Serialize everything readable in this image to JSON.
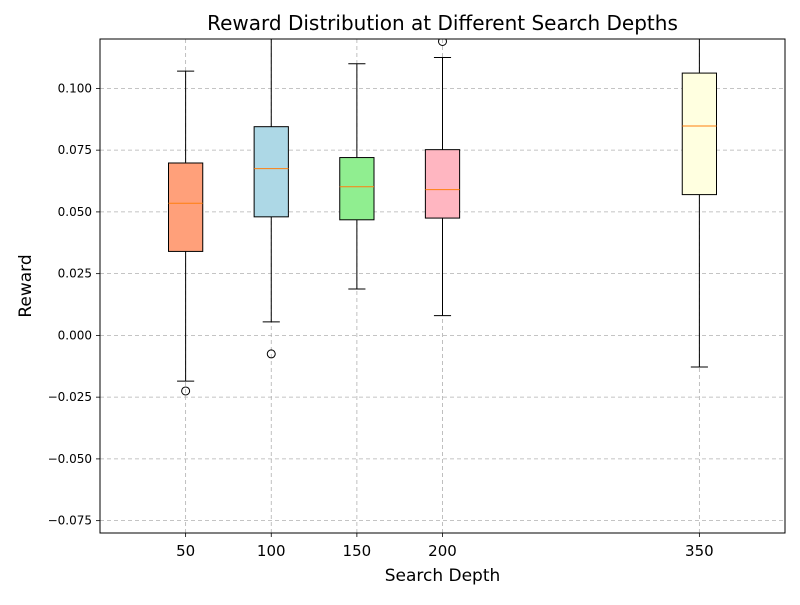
{
  "chart_data": {
    "type": "box",
    "title": "Reward Distribution at Different Search Depths",
    "xlabel": "Search Depth",
    "ylabel": "Reward",
    "xlim": [
      0,
      400
    ],
    "ylim": [
      -0.08,
      0.12
    ],
    "yticks": [
      -0.075,
      -0.05,
      -0.025,
      0.0,
      0.025,
      0.05,
      0.075,
      0.1
    ],
    "ytick_labels": [
      "−0.075",
      "−0.050",
      "−0.025",
      "0.000",
      "0.025",
      "0.050",
      "0.075",
      "0.100"
    ],
    "grid": true,
    "box_width": 20,
    "median_color": "#ff7f0e",
    "boxes": [
      {
        "x": 50,
        "label": "50",
        "color": "#ffa07a",
        "q1": 0.034,
        "median": 0.0535,
        "q3": 0.0698,
        "whisker_low": -0.0185,
        "whisker_high": 0.107,
        "outliers": [
          -0.0225
        ]
      },
      {
        "x": 100,
        "label": "100",
        "color": "#add8e6",
        "q1": 0.048,
        "median": 0.0675,
        "q3": 0.0845,
        "whisker_low": 0.0055,
        "whisker_high": 0.1225,
        "outliers": [
          -0.0075
        ]
      },
      {
        "x": 150,
        "label": "150",
        "color": "#90ee90",
        "q1": 0.0468,
        "median": 0.0602,
        "q3": 0.072,
        "whisker_low": 0.0188,
        "whisker_high": 0.11,
        "outliers": []
      },
      {
        "x": 200,
        "label": "200",
        "color": "#ffb6c1",
        "q1": 0.0475,
        "median": 0.059,
        "q3": 0.0752,
        "whisker_low": 0.008,
        "whisker_high": 0.1125,
        "outliers": [
          0.119
        ]
      },
      {
        "x": 350,
        "label": "350",
        "color": "#ffffe0",
        "q1": 0.057,
        "median": 0.0848,
        "q3": 0.1062,
        "whisker_low": -0.0128,
        "whisker_high": 0.1225,
        "outliers": []
      }
    ]
  }
}
